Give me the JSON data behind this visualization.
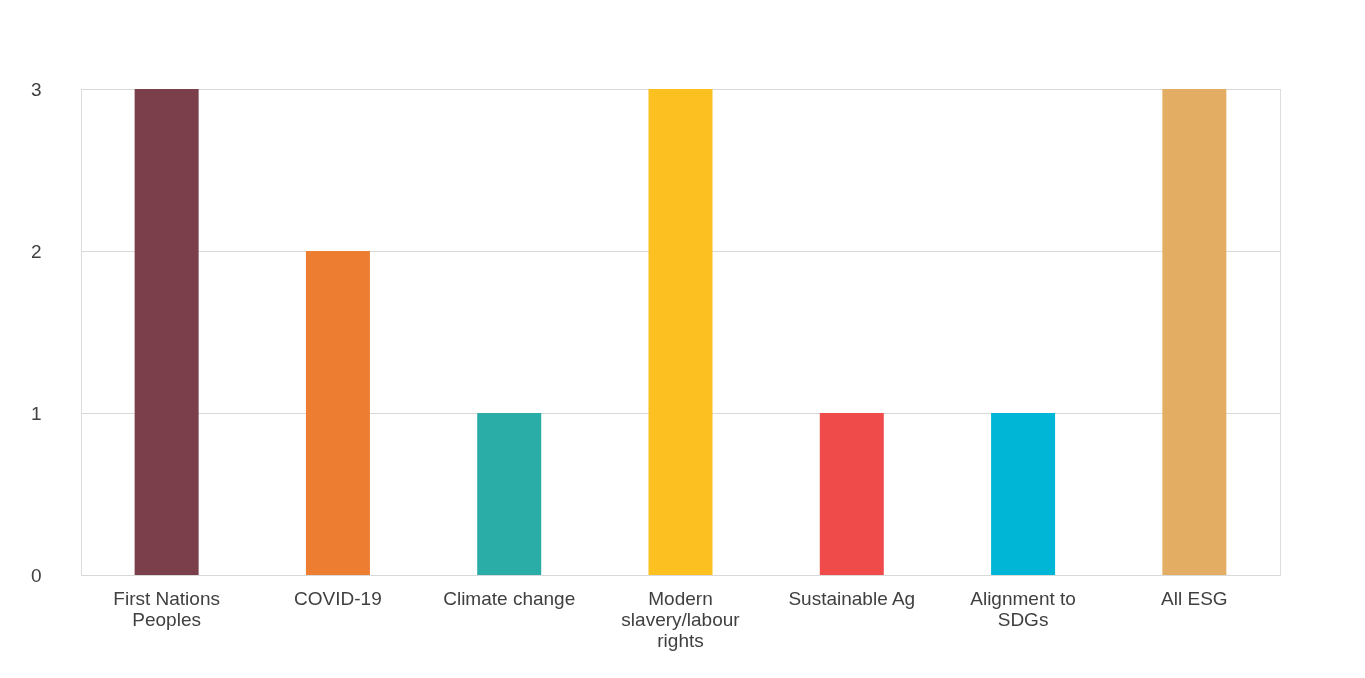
{
  "chart_data": {
    "type": "bar",
    "categories": [
      "First Nations Peoples",
      "COVID-19",
      "Climate change",
      "Modern slavery/labour rights",
      "Sustainable Ag",
      "Alignment to SDGs",
      "All ESG"
    ],
    "values": [
      3,
      2,
      1,
      3,
      1,
      1,
      3
    ],
    "colors": [
      "#7b3f4b",
      "#ed7d31",
      "#2aaca7",
      "#fdc021",
      "#ef4b4b",
      "#00b6d6",
      "#e3ae63"
    ],
    "ylim": [
      0,
      3
    ],
    "yticks": [
      0,
      1,
      2,
      3
    ],
    "grid": "y",
    "legend": false
  }
}
